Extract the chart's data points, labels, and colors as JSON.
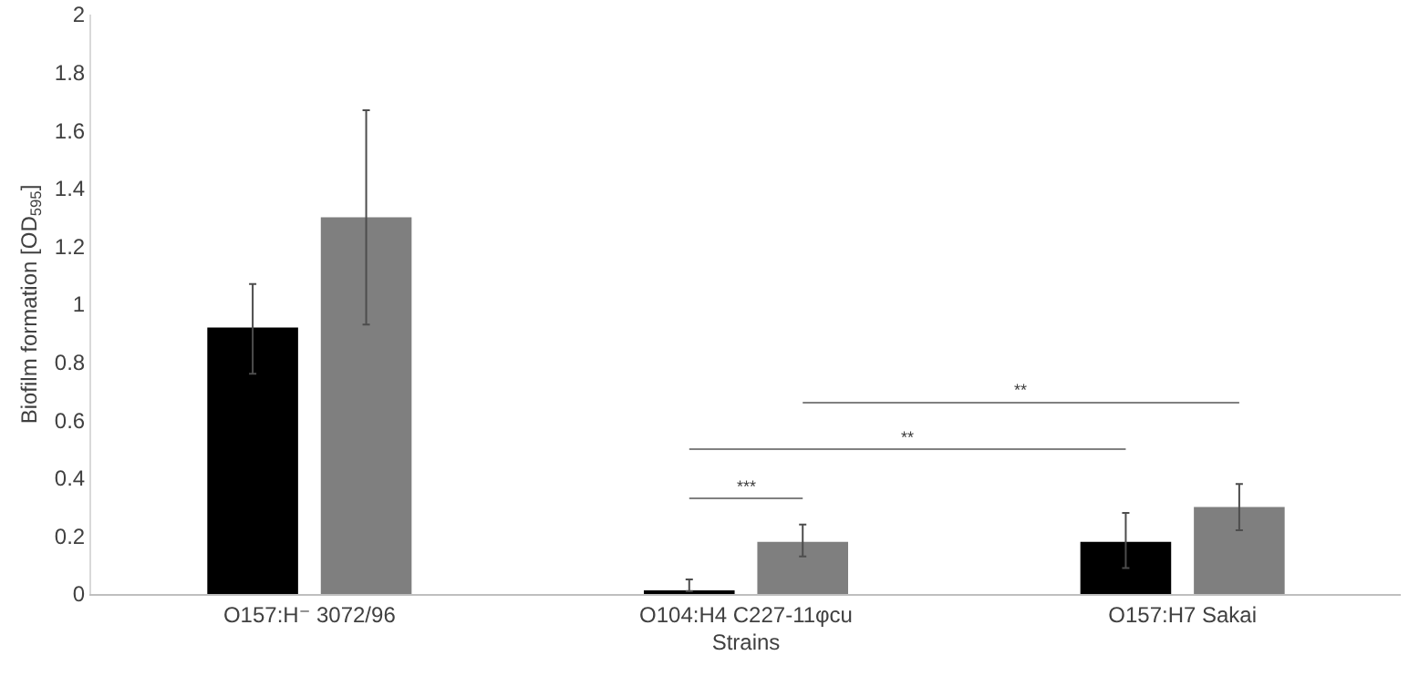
{
  "chart_data": {
    "type": "bar",
    "xlabel": "Strains",
    "ylabel": "Biofilm formation [OD$_{595}$]",
    "categories": [
      "O157:H⁻ 3072/96",
      "O104:H4 C227-11φcu",
      "O157:H7 Sakai"
    ],
    "series": [
      {
        "color": "#000000",
        "values": [
          0.92,
          0.01,
          0.18
        ],
        "errors": [
          [
            0.76,
            1.07
          ],
          [
            0.01,
            0.05
          ],
          [
            0.09,
            0.28
          ]
        ]
      },
      {
        "color": "#7f7f7f",
        "values": [
          1.3,
          0.18,
          0.3
        ],
        "errors": [
          [
            0.93,
            1.67
          ],
          [
            0.13,
            0.24
          ],
          [
            0.22,
            0.38
          ]
        ]
      }
    ],
    "ylim": [
      0,
      2
    ],
    "yticks": [
      0,
      0.2,
      0.4,
      0.6,
      0.8,
      1,
      1.2,
      1.4,
      1.6,
      1.8,
      2
    ],
    "grid": false,
    "annotations": [
      "***",
      "**",
      "**"
    ]
  }
}
